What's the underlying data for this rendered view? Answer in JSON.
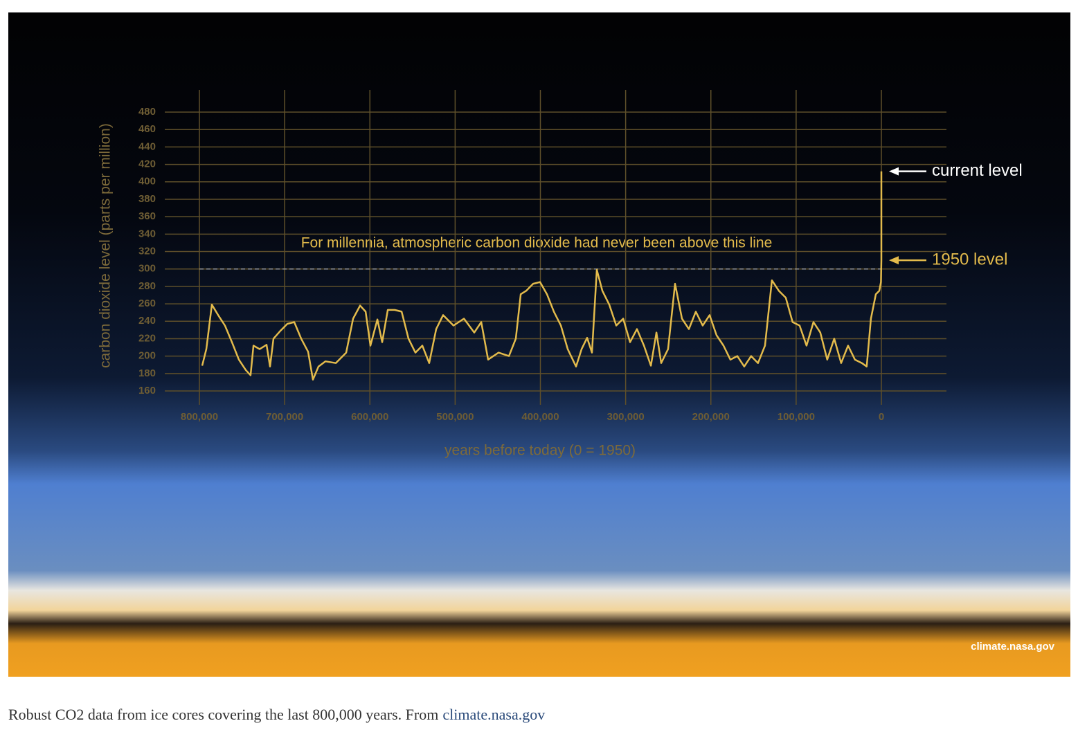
{
  "chart_data": {
    "type": "line",
    "y_label": "carbon dioxide level (parts per million)",
    "x_label": "years before today (0 = 1950)",
    "color": "#e3bb4c",
    "x": [
      796750,
      791900,
      785400,
      778000,
      770000,
      761800,
      753700,
      745600,
      740000,
      736600,
      729300,
      721200,
      717150,
      713100,
      705000,
      696850,
      688700,
      680600,
      672500,
      666800,
      660300,
      652200,
      640000,
      627800,
      619700,
      611500,
      605000,
      599400,
      591200,
      585600,
      579000,
      570900,
      562800,
      554700,
      546600,
      538500,
      530400,
      522200,
      514100,
      501900,
      489700,
      477600,
      469400,
      461300,
      449100,
      436900,
      428800,
      423100,
      416600,
      408500,
      400400,
      392300,
      384150,
      376000,
      367900,
      358200,
      351700,
      345200,
      339500,
      333800,
      327300,
      319200,
      311000,
      302900,
      294800,
      286700,
      278500,
      270400,
      263900,
      258300,
      250200,
      242000,
      233900,
      225800,
      217700,
      209600,
      201500,
      193400,
      185200,
      177100,
      169000,
      160900,
      152800,
      144700,
      136500,
      128400,
      120300,
      112200,
      104100,
      95900,
      87800,
      79700,
      71600,
      63500,
      55300,
      47200,
      39100,
      31000,
      22900,
      17200,
      12300,
      6500,
      2400,
      500,
      0,
      0
    ],
    "values": [
      189,
      208,
      259,
      247,
      235,
      216,
      196,
      184,
      178,
      212,
      208,
      213,
      188,
      220,
      229,
      237,
      239,
      220,
      205,
      173,
      188,
      194,
      192,
      204,
      243,
      258,
      251,
      212,
      242,
      216,
      253,
      253,
      251,
      220,
      204,
      212,
      192,
      231,
      247,
      235,
      243,
      227,
      239,
      196,
      204,
      200,
      220,
      271,
      275,
      283,
      285,
      271,
      251,
      235,
      208,
      188,
      208,
      221,
      204,
      299,
      275,
      259,
      235,
      243,
      216,
      231,
      212,
      189,
      227,
      192,
      208,
      283,
      243,
      231,
      251,
      235,
      247,
      224,
      212,
      196,
      200,
      188,
      200,
      192,
      212,
      287,
      275,
      267,
      239,
      235,
      212,
      239,
      227,
      196,
      220,
      192,
      212,
      196,
      192,
      188,
      243,
      271,
      275,
      285,
      310,
      412
    ],
    "xlim": [
      800000,
      0
    ],
    "xticks": [
      {
        "value": 800000,
        "label": "800,000"
      },
      {
        "value": 700000,
        "label": "700,000"
      },
      {
        "value": 600000,
        "label": "600,000"
      },
      {
        "value": 500000,
        "label": "500,000"
      },
      {
        "value": 400000,
        "label": "400,000"
      },
      {
        "value": 300000,
        "label": "300,000"
      },
      {
        "value": 200000,
        "label": "200,000"
      },
      {
        "value": 100000,
        "label": "100,000"
      },
      0
    ],
    "ylim": [
      160,
      480
    ],
    "yticks": [
      160,
      180,
      200,
      220,
      240,
      260,
      280,
      300,
      320,
      340,
      360,
      380,
      400,
      420,
      440,
      460,
      480
    ],
    "grid": true,
    "reference_line": {
      "text": "For millennia, atmospheric carbon dioxide had never been above this line",
      "value": 300
    },
    "annotations": [
      {
        "text": "current level",
        "value": 412,
        "color": "#ffffff"
      },
      {
        "text": "1950 level",
        "value": 310,
        "color": "#e3bb4c"
      }
    ],
    "source": "climate.nasa.gov"
  },
  "caption": {
    "text": "Robust CO2 data from ice cores covering the last 800,000 years. From",
    "link": "climate.nasa.gov"
  }
}
